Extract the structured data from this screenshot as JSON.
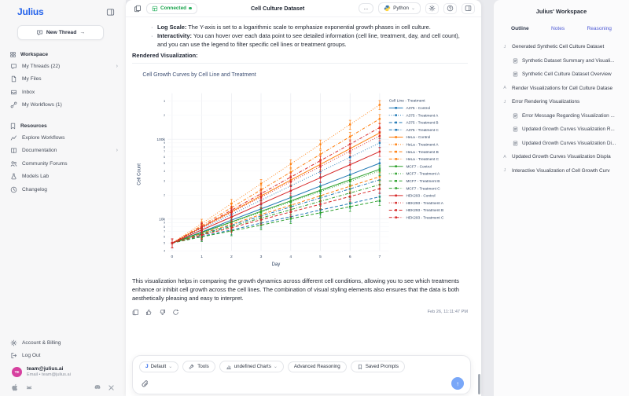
{
  "brand": {
    "logo": "Julius"
  },
  "sidebar": {
    "new_thread": "New Thread",
    "new_thread_arrow": "→",
    "sections": [
      {
        "title": "Workspace",
        "icon": "grid-icon",
        "items": [
          {
            "icon": "chat-icon",
            "label": "My Threads (22)",
            "chevron": true
          },
          {
            "icon": "file-icon",
            "label": "My Files"
          },
          {
            "icon": "inbox-icon",
            "label": "Inbox"
          },
          {
            "icon": "workflow-icon",
            "label": "My Workflows (1)"
          }
        ]
      },
      {
        "title": "Resources",
        "icon": "resources-icon",
        "items": [
          {
            "icon": "explore-icon",
            "label": "Explore Workflows"
          },
          {
            "icon": "book-icon",
            "label": "Documentation",
            "chevron": true
          },
          {
            "icon": "people-icon",
            "label": "Community Forums"
          },
          {
            "icon": "flask-icon",
            "label": "Models Lab"
          },
          {
            "icon": "clock-icon",
            "label": "Changelog"
          }
        ]
      }
    ],
    "footer": {
      "account": "Account & Billing",
      "logout": "Log Out",
      "avatar_initials": "TE",
      "user_name": "team@julius.ai",
      "user_sub": "Email • team@julius.ai"
    }
  },
  "header": {
    "connection": "Connected",
    "title": "Cell Culture Dataset",
    "menu": "...",
    "runtime": "Python"
  },
  "message": {
    "bullets": [
      {
        "bold": "Log Scale:",
        "text": " The Y-axis is set to a logarithmic scale to emphasize exponential growth phases in cell culture."
      },
      {
        "bold": "Interactivity:",
        "text": " You can hover over each data point to see detailed information (cell line, treatment, day, and cell count), and you can use the legend to filter specific cell lines or treatment groups."
      }
    ],
    "rendered_label": "Rendered Visualization:",
    "closing": "This visualization helps in comparing the growth dynamics across different cell conditions, allowing you to see which treatments enhance or inhibit cell growth across the cell lines. The combination of visual styling elements also ensures that the data is both aesthetically pleasing and easy to interpret.",
    "timestamp": "Feb 26, 11:11:47 PM"
  },
  "composer": {
    "pills": [
      {
        "icon": "julius-icon",
        "label": "Default",
        "chevron": true
      },
      {
        "icon": "tools-icon",
        "label": "Tools"
      },
      {
        "icon": "chart-icon",
        "label": "undefined Charts",
        "chevron": true
      },
      {
        "label": "Advanced Reasoning"
      },
      {
        "icon": "bookmark-icon",
        "label": "Saved Prompts"
      }
    ]
  },
  "workspace_panel": {
    "title": "Julius' Workspace",
    "tabs": [
      {
        "label": "Outline",
        "active": true
      },
      {
        "label": "Notes",
        "active": false
      },
      {
        "label": "Reasoning",
        "active": false
      }
    ],
    "outline": [
      {
        "icon": "J",
        "label": "Generated Synthetic Cell Culture Dataset",
        "children": [
          "Synthetic Dataset Summary and Visuali...",
          "Synthetic Cell Culture Dataset Overview"
        ]
      },
      {
        "icon": "A",
        "label": "Render Visualizations for Cell Culture Datase"
      },
      {
        "icon": "J",
        "label": "Error Rendering Visualizations",
        "children": [
          "Error Message Regarding Visualization ...",
          "Updated Growth Curves Visualization R...",
          "Updated Growth Curves Visualization Di..."
        ]
      },
      {
        "icon": "A",
        "label": "Updated Growth Curves Visualization Displa"
      },
      {
        "icon": "J",
        "label": "Interactive Visualization of Cell Growth Curv"
      }
    ]
  },
  "chart_data": {
    "type": "line",
    "title": "Cell Growth Curves by Cell Line and Treatment",
    "xlabel": "Day",
    "ylabel": "Cell Count",
    "yscale": "log",
    "ylim": [
      4000,
      330000
    ],
    "x": [
      0,
      1,
      2,
      3,
      4,
      5,
      6,
      7
    ],
    "legend_title": "Cell Line - Treatment",
    "legend_position": "right",
    "grid": true,
    "error_frac": 0.13,
    "cell_line_colors": {
      "A375": "#1f77b4",
      "HeLa": "#ff7f0e",
      "MCF7": "#2ca02c",
      "HEK293": "#d62728"
    },
    "treatment_dash": {
      "Control": "solid",
      "Treatment A": "dot",
      "Treatment B": "dash",
      "Treatment C": "dashdot"
    },
    "series": [
      {
        "name": "A375 - Control",
        "cell_line": "A375",
        "treatment": "Control",
        "values": [
          5000,
          6900,
          9700,
          13400,
          18600,
          25900,
          36000,
          50000
        ]
      },
      {
        "name": "A375 - Treatment A",
        "cell_line": "A375",
        "treatment": "Treatment A",
        "values": [
          5000,
          7600,
          11400,
          17200,
          26100,
          39400,
          59500,
          90000
        ]
      },
      {
        "name": "A375 - Treatment B",
        "cell_line": "A375",
        "treatment": "Treatment B",
        "values": [
          5000,
          6100,
          7300,
          8900,
          10700,
          13000,
          15700,
          19000
        ]
      },
      {
        "name": "A375 - Treatment C",
        "cell_line": "A375",
        "treatment": "Treatment C",
        "values": [
          5000,
          6500,
          8400,
          10900,
          14200,
          18400,
          23900,
          31000
        ]
      },
      {
        "name": "HeLa - Control",
        "cell_line": "HeLa",
        "treatment": "Control",
        "values": [
          5000,
          7900,
          12400,
          19500,
          30800,
          48500,
          76300,
          120000
        ]
      },
      {
        "name": "HeLa - Treatment A",
        "cell_line": "HeLa",
        "treatment": "Treatment A",
        "values": [
          5000,
          8800,
          15600,
          27700,
          48900,
          86500,
          152900,
          270000
        ]
      },
      {
        "name": "HeLa - Treatment B",
        "cell_line": "HeLa",
        "treatment": "Treatment B",
        "values": [
          5000,
          6600,
          8600,
          11400,
          14900,
          19600,
          25800,
          34000
        ]
      },
      {
        "name": "HeLa - Treatment C",
        "cell_line": "HeLa",
        "treatment": "Treatment C",
        "values": [
          5000,
          8300,
          13900,
          23200,
          38700,
          64600,
          107700,
          180000
        ]
      },
      {
        "name": "MCF7 - Control",
        "cell_line": "MCF7",
        "treatment": "Control",
        "values": [
          5000,
          6800,
          9200,
          12500,
          16900,
          22900,
          31000,
          42000
        ]
      },
      {
        "name": "MCF7 - Treatment A",
        "cell_line": "MCF7",
        "treatment": "Treatment A",
        "values": [
          5000,
          6700,
          9100,
          12200,
          16400,
          22100,
          29700,
          40000
        ]
      },
      {
        "name": "MCF7 - Treatment B",
        "cell_line": "MCF7",
        "treatment": "Treatment B",
        "values": [
          5000,
          6000,
          7100,
          8400,
          10100,
          12000,
          14300,
          17000
        ]
      },
      {
        "name": "MCF7 - Treatment C",
        "cell_line": "MCF7",
        "treatment": "Treatment C",
        "values": [
          5000,
          6400,
          8100,
          10300,
          13100,
          16700,
          21200,
          27000
        ]
      },
      {
        "name": "HEK293 - Control",
        "cell_line": "HEK293",
        "treatment": "Control",
        "values": [
          5000,
          7300,
          10600,
          15500,
          22600,
          32900,
          48000,
          70000
        ]
      },
      {
        "name": "HEK293 - Treatment A",
        "cell_line": "HEK293",
        "treatment": "Treatment A",
        "values": [
          5000,
          7800,
          12100,
          18800,
          29300,
          45500,
          70800,
          110000
        ]
      },
      {
        "name": "HEK293 - Treatment B",
        "cell_line": "HEK293",
        "treatment": "Treatment B",
        "values": [
          5000,
          6300,
          7800,
          9800,
          12300,
          15300,
          19200,
          24000
        ]
      },
      {
        "name": "HEK293 - Treatment C",
        "cell_line": "HEK293",
        "treatment": "Treatment C",
        "values": [
          5000,
          8000,
          12900,
          20800,
          33500,
          53900,
          86700,
          140000
        ]
      }
    ]
  }
}
